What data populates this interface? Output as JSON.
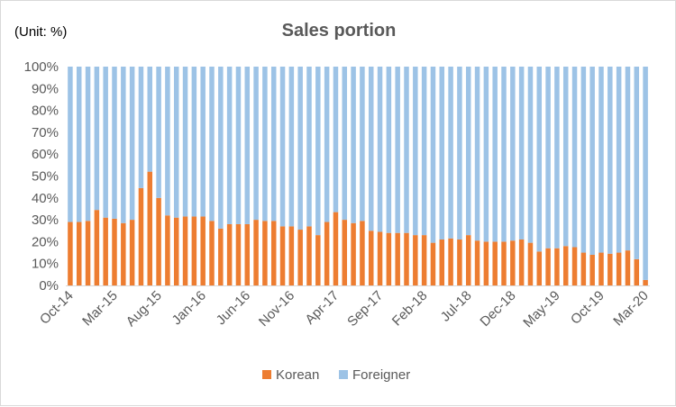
{
  "chart_data": {
    "type": "bar",
    "stacked": true,
    "percent_stacked": true,
    "title": "Sales portion",
    "unit_note": "(Unit: %)",
    "ylim": [
      0,
      100
    ],
    "y_ticks": [
      "0%",
      "10%",
      "20%",
      "30%",
      "40%",
      "50%",
      "60%",
      "70%",
      "80%",
      "90%",
      "100%"
    ],
    "x_tick_labels": [
      {
        "index": 0,
        "label": "Oct-14"
      },
      {
        "index": 5,
        "label": "Mar-15"
      },
      {
        "index": 10,
        "label": "Aug-15"
      },
      {
        "index": 15,
        "label": "Jan-16"
      },
      {
        "index": 20,
        "label": "Jun-16"
      },
      {
        "index": 25,
        "label": "Nov-16"
      },
      {
        "index": 30,
        "label": "Apr-17"
      },
      {
        "index": 35,
        "label": "Sep-17"
      },
      {
        "index": 40,
        "label": "Feb-18"
      },
      {
        "index": 45,
        "label": "Jul-18"
      },
      {
        "index": 50,
        "label": "Dec-18"
      },
      {
        "index": 55,
        "label": "May-19"
      },
      {
        "index": 60,
        "label": "Oct-19"
      },
      {
        "index": 65,
        "label": "Mar-20"
      }
    ],
    "categories": [
      "Oct-14",
      "Nov-14",
      "Dec-14",
      "Jan-15",
      "Feb-15",
      "Mar-15",
      "Apr-15",
      "May-15",
      "Jun-15",
      "Jul-15",
      "Aug-15",
      "Sep-15",
      "Oct-15",
      "Nov-15",
      "Dec-15",
      "Jan-16",
      "Feb-16",
      "Mar-16",
      "Apr-16",
      "May-16",
      "Jun-16",
      "Jul-16",
      "Aug-16",
      "Sep-16",
      "Oct-16",
      "Nov-16",
      "Dec-16",
      "Jan-17",
      "Feb-17",
      "Mar-17",
      "Apr-17",
      "May-17",
      "Jun-17",
      "Jul-17",
      "Aug-17",
      "Sep-17",
      "Oct-17",
      "Nov-17",
      "Dec-17",
      "Jan-18",
      "Feb-18",
      "Mar-18",
      "Apr-18",
      "May-18",
      "Jun-18",
      "Jul-18",
      "Aug-18",
      "Sep-18",
      "Oct-18",
      "Nov-18",
      "Dec-18",
      "Jan-19",
      "Feb-19",
      "Mar-19",
      "Apr-19",
      "May-19",
      "Jun-19",
      "Jul-19",
      "Aug-19",
      "Sep-19",
      "Oct-19",
      "Nov-19",
      "Dec-19",
      "Jan-20",
      "Feb-20",
      "Mar-20"
    ],
    "series": [
      {
        "name": "Korean",
        "color": "#ED7D31",
        "values": [
          29,
          29,
          29.5,
          34.5,
          31,
          30.5,
          28.5,
          30,
          44.5,
          52,
          40,
          32,
          31,
          31.5,
          31.5,
          31.5,
          29.5,
          26,
          28,
          28,
          28,
          30,
          29.5,
          29.5,
          27,
          27,
          25.5,
          27,
          23,
          29,
          33.5,
          30,
          28.5,
          29.5,
          25,
          24.5,
          24,
          24,
          24,
          23,
          23,
          19.5,
          21,
          21.5,
          21,
          23,
          20.5,
          20,
          20,
          20,
          20.5,
          21,
          19.5,
          15.5,
          17,
          17,
          18,
          17.5,
          15,
          14,
          15,
          14.5,
          15,
          16,
          12,
          2.5
        ]
      },
      {
        "name": "Foreigner",
        "color": "#9DC3E6",
        "values": [
          71,
          71,
          70.5,
          65.5,
          69,
          69.5,
          71.5,
          70,
          55.5,
          48,
          60,
          68,
          69,
          68.5,
          68.5,
          68.5,
          70.5,
          74,
          72,
          72,
          72,
          70,
          70.5,
          70.5,
          73,
          73,
          74.5,
          73,
          77,
          71,
          66.5,
          70,
          71.5,
          70.5,
          75,
          75.5,
          76,
          76,
          76,
          77,
          77,
          80.5,
          79,
          78.5,
          79,
          77,
          79.5,
          80,
          80,
          80,
          79.5,
          79,
          80.5,
          84.5,
          83,
          83,
          82,
          82.5,
          85,
          86,
          85,
          85.5,
          85,
          84,
          88,
          97.5
        ]
      }
    ],
    "grid": false,
    "legend_position": "bottom"
  }
}
